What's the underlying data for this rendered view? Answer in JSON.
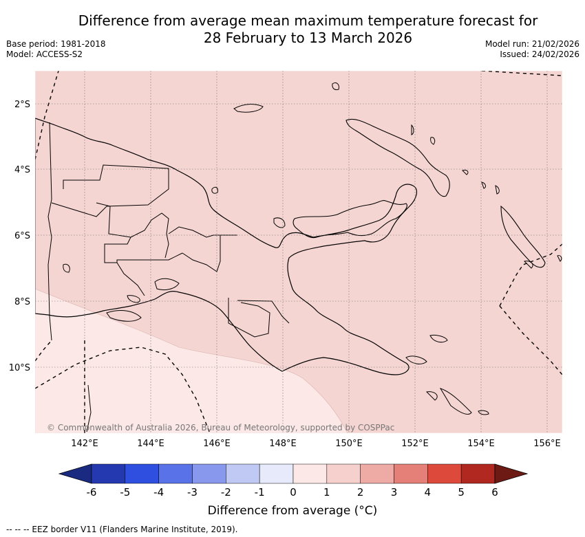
{
  "title": {
    "line1": "Difference from average mean maximum temperature forecast for",
    "line2": "28 February to 13 March 2026"
  },
  "meta": {
    "base_period": "Base period: 1981-2018",
    "model": "Model: ACCESS-S2",
    "model_run": "Model run: 21/02/2026",
    "issued": "Issued: 24/02/2026"
  },
  "map": {
    "lat_labels": [
      "2°S",
      "4°S",
      "6°S",
      "8°S",
      "10°S"
    ],
    "lon_labels": [
      "142°E",
      "144°E",
      "146°E",
      "148°E",
      "150°E",
      "152°E",
      "154°E",
      "156°E"
    ],
    "copyright": "© Commonwealth of Australia 2026, Bureau of Meteorology, supported by COSPPac",
    "colors": {
      "anomaly_0_1": "#fce8e6",
      "anomaly_1_2": "#f5d5d2",
      "land_outline": "#000000"
    }
  },
  "colorbar": {
    "ticks": [
      "-6",
      "-5",
      "-4",
      "-3",
      "-2",
      "-1",
      "0",
      "1",
      "2",
      "3",
      "4",
      "5",
      "6"
    ],
    "colors": [
      "#1a2a80",
      "#2439b0",
      "#2f4fe0",
      "#5a72e8",
      "#8898ec",
      "#c0c8f4",
      "#e6eafa",
      "#fce8e6",
      "#f5d0cc",
      "#eeaaa4",
      "#e58078",
      "#dd4a3c",
      "#b02820",
      "#6e1a14"
    ],
    "title": "Difference from average (°C)"
  },
  "footer": "-- -- -- EEZ border V11 (Flanders Marine Institute, 2019)."
}
